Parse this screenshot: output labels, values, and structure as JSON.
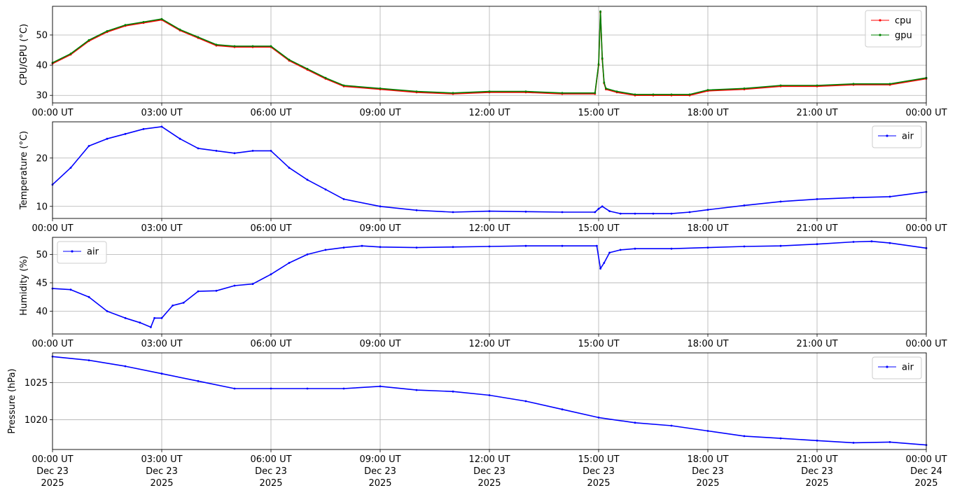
{
  "chart_data": [
    {
      "type": "line",
      "ylabel": "CPU/GPU (°C)",
      "xlim": [
        "00:00 UT",
        "00:00 UT (+24h)"
      ],
      "ylim": [
        27.5,
        59.5
      ],
      "yticks": [
        30,
        40,
        50
      ],
      "grid": true,
      "legend": "top-right",
      "xtick_labels": [
        "00:00 UT",
        "03:00 UT",
        "06:00 UT",
        "09:00 UT",
        "12:00 UT",
        "15:00 UT",
        "18:00 UT",
        "21:00 UT",
        "00:00 UT"
      ],
      "x_hours": [
        0,
        0.5,
        1,
        1.5,
        2,
        2.5,
        3,
        3.5,
        4,
        4.5,
        5,
        5.5,
        6,
        6.5,
        7,
        7.5,
        8,
        9,
        10,
        11,
        12,
        13,
        14,
        14.9,
        15.0,
        15.05,
        15.1,
        15.15,
        15.2,
        15.5,
        16,
        16.5,
        17,
        17.5,
        18,
        19,
        20,
        21,
        22,
        23,
        24
      ],
      "series": [
        {
          "name": "cpu",
          "color": "#ff0000",
          "values": [
            40.5,
            43.5,
            48,
            51,
            53,
            54,
            55,
            51.5,
            49,
            46.5,
            46,
            46,
            46,
            41.5,
            38.5,
            35.5,
            33,
            32,
            31,
            30.5,
            31,
            31,
            30.5,
            30.5,
            40,
            57.5,
            42,
            34,
            32,
            31,
            30,
            30,
            30,
            30,
            31.5,
            32,
            33,
            33,
            33.5,
            33.5,
            35.5
          ]
        },
        {
          "name": "gpu",
          "color": "#008000",
          "values": [
            40.8,
            43.8,
            48.3,
            51.3,
            53.3,
            54.3,
            55.3,
            51.8,
            49.3,
            46.8,
            46.3,
            46.3,
            46.3,
            41.8,
            38.8,
            35.8,
            33.3,
            32.3,
            31.3,
            30.8,
            31.3,
            31.3,
            30.8,
            30.8,
            40.3,
            57.8,
            42.3,
            34.3,
            32.3,
            31.3,
            30.3,
            30.3,
            30.3,
            30.3,
            31.8,
            32.3,
            33.3,
            33.3,
            33.8,
            33.8,
            35.8
          ]
        }
      ]
    },
    {
      "type": "line",
      "ylabel": "Temperature (°C)",
      "ylim": [
        7.5,
        27.5
      ],
      "yticks": [
        10,
        20
      ],
      "grid": true,
      "legend": "top-right",
      "xtick_labels": [
        "00:00 UT",
        "03:00 UT",
        "06:00 UT",
        "09:00 UT",
        "12:00 UT",
        "15:00 UT",
        "18:00 UT",
        "21:00 UT",
        "00:00 UT"
      ],
      "x_hours": [
        0,
        0.5,
        1,
        1.5,
        2,
        2.5,
        3,
        3.5,
        4,
        4.5,
        5,
        5.5,
        6,
        6.5,
        7,
        7.5,
        8,
        9,
        10,
        11,
        12,
        13,
        14,
        14.9,
        15.0,
        15.1,
        15.3,
        15.6,
        16,
        16.5,
        17,
        17.5,
        18,
        19,
        20,
        21,
        22,
        23,
        24
      ],
      "series": [
        {
          "name": "air",
          "color": "#0000ff",
          "values": [
            14.5,
            18,
            22.5,
            24,
            25,
            26,
            26.5,
            24,
            22,
            21.5,
            21,
            21.5,
            21.5,
            18,
            15.5,
            13.5,
            11.5,
            10,
            9.2,
            8.8,
            9,
            8.9,
            8.8,
            8.8,
            9.5,
            10,
            9,
            8.5,
            8.5,
            8.5,
            8.5,
            8.8,
            9.3,
            10.2,
            11,
            11.5,
            11.8,
            12,
            13
          ]
        }
      ]
    },
    {
      "type": "line",
      "ylabel": "Humidity (%)",
      "ylim": [
        36,
        53
      ],
      "yticks": [
        40,
        45,
        50
      ],
      "grid": true,
      "legend": "top-left",
      "xtick_labels": [
        "00:00 UT",
        "03:00 UT",
        "06:00 UT",
        "09:00 UT",
        "12:00 UT",
        "15:00 UT",
        "18:00 UT",
        "21:00 UT",
        "00:00 UT"
      ],
      "x_hours": [
        0,
        0.5,
        1,
        1.5,
        2,
        2.4,
        2.7,
        2.8,
        3,
        3.3,
        3.6,
        4,
        4.5,
        5,
        5.5,
        6,
        6.5,
        7,
        7.5,
        8,
        8.5,
        9,
        10,
        11,
        12,
        13,
        14,
        14.95,
        15.05,
        15.15,
        15.3,
        15.6,
        16,
        17,
        18,
        19,
        20,
        21,
        22,
        22.5,
        23,
        24
      ],
      "series": [
        {
          "name": "air",
          "color": "#0000ff",
          "values": [
            44,
            43.8,
            42.5,
            40,
            38.8,
            38,
            37.2,
            38.8,
            38.8,
            41,
            41.5,
            43.5,
            43.6,
            44.5,
            44.8,
            46.5,
            48.5,
            50,
            50.8,
            51.2,
            51.5,
            51.3,
            51.2,
            51.3,
            51.4,
            51.5,
            51.5,
            51.5,
            47.5,
            48.5,
            50.3,
            50.8,
            51,
            51,
            51.2,
            51.4,
            51.5,
            51.8,
            52.2,
            52.3,
            52,
            51.1
          ]
        }
      ]
    },
    {
      "type": "line",
      "ylabel": "Pressure (hPa)",
      "ylim": [
        1016,
        1029
      ],
      "yticks": [
        1020,
        1025
      ],
      "grid": true,
      "legend": "top-right",
      "xtick_labels": [
        "00:00 UT\nDec 23\n2025",
        "03:00 UT\nDec 23\n2025",
        "06:00 UT\nDec 23\n2025",
        "09:00 UT\nDec 23\n2025",
        "12:00 UT\nDec 23\n2025",
        "15:00 UT\nDec 23\n2025",
        "18:00 UT\nDec 23\n2025",
        "21:00 UT\nDec 23\n2025",
        "00:00 UT\nDec 24\n2025"
      ],
      "x_hours": [
        0,
        1,
        2,
        3,
        4,
        5,
        6,
        7,
        8,
        9,
        10,
        11,
        12,
        13,
        14,
        15,
        16,
        17,
        18,
        19,
        20,
        21,
        22,
        23,
        24
      ],
      "series": [
        {
          "name": "air",
          "color": "#0000ff",
          "values": [
            1028.5,
            1028,
            1027.2,
            1026.2,
            1025.2,
            1024.2,
            1024.2,
            1024.2,
            1024.2,
            1024.5,
            1024,
            1023.8,
            1023.3,
            1022.5,
            1021.4,
            1020.3,
            1019.6,
            1019.2,
            1018.5,
            1017.8,
            1017.5,
            1017.2,
            1016.9,
            1017,
            1016.6
          ]
        }
      ]
    }
  ]
}
